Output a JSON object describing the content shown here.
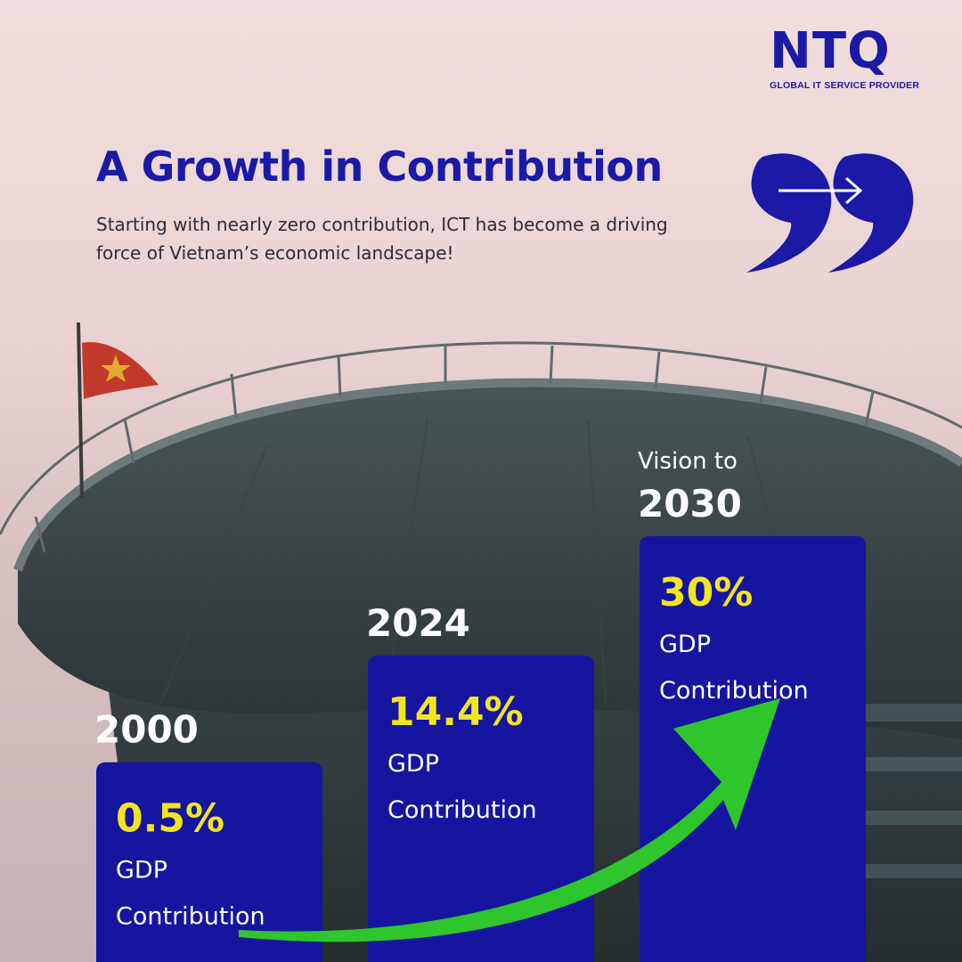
{
  "brand": {
    "name": "NTQ",
    "tagline": "GLOBAL IT SERVICE PROVIDER",
    "color": "#1a1aa6"
  },
  "title": "A Growth in Contribution",
  "subtitle": "Starting with nearly zero contribution, ICT has become a driving force of Vietnam’s economic landscape!",
  "icons": [
    "quote-arrow-icon",
    "growth-arrow-icon"
  ],
  "chart_data": {
    "type": "bar",
    "title": "A Growth in Contribution",
    "categories": [
      "2000",
      "2024",
      "2030"
    ],
    "category_prefix": [
      "",
      "",
      "Vision to"
    ],
    "values": [
      0.5,
      14.4,
      30
    ],
    "value_labels": [
      "0.5%",
      "14.4%",
      "30%"
    ],
    "metric_label": [
      "GDP",
      "Contribution"
    ],
    "xlabel": "",
    "ylabel": "GDP Contribution (%)",
    "bar_color": "#1515a0",
    "value_color": "#f3e51c",
    "trend_color": "#2fc52c"
  }
}
